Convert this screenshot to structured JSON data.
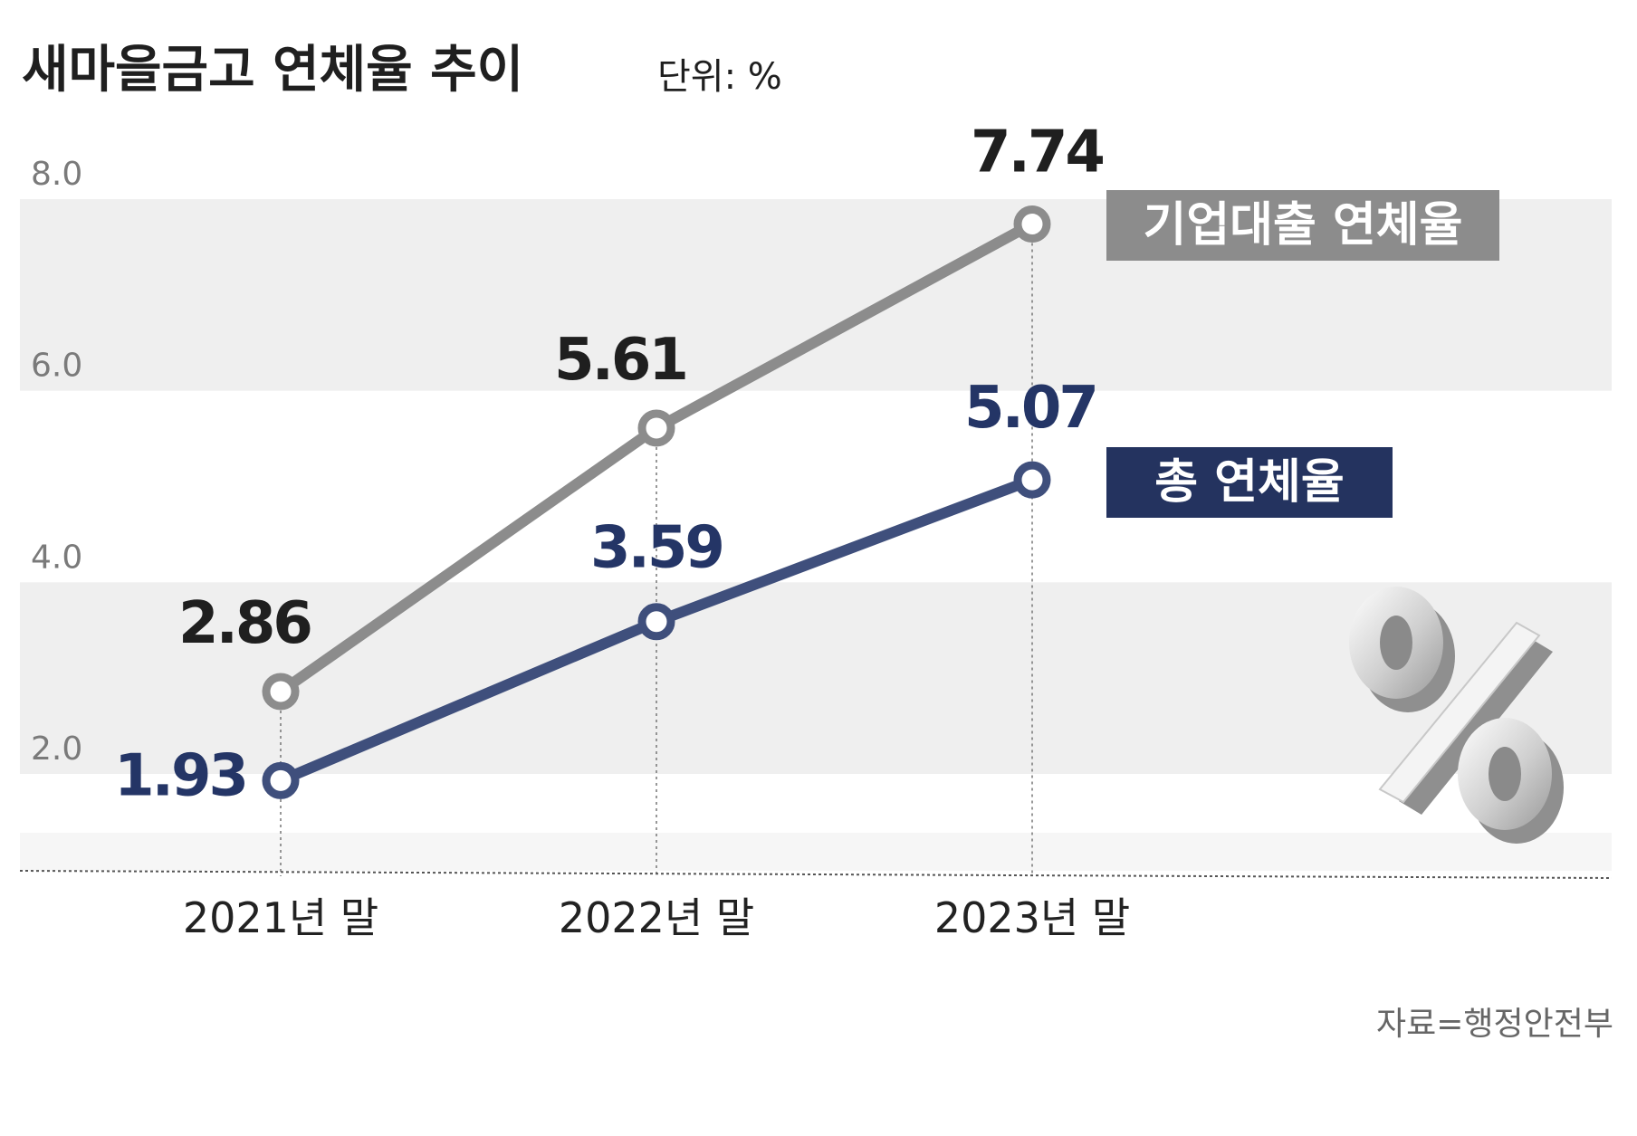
{
  "title": "새마을금고 연체율 추이",
  "unit": "단위: %",
  "source": "자료=행정안전부",
  "colors": {
    "background": "#ffffff",
    "band": "#efefef",
    "axis": "#555555",
    "tick": "#7a7a7a",
    "corporate": "#8c8c8c",
    "corporate_label": "#1f1f1f",
    "total": "#3f4f7c",
    "total_label": "#243566",
    "total_legend_bg": "#24335f",
    "legend_text": "#ffffff",
    "title": "#1f1f1f",
    "source": "#666666"
  },
  "chart_data": {
    "type": "line",
    "title": "새마을금고 연체율 추이",
    "categories": [
      "2021년 말",
      "2022년 말",
      "2023년 말"
    ],
    "ylim": [
      0.7,
      8.0
    ],
    "yticks": [
      2.0,
      4.0,
      6.0,
      8.0
    ],
    "ytick_labels": [
      "2.0",
      "4.0",
      "6.0",
      "8.0"
    ],
    "grid": "alternating bands",
    "legend": "right, next to line ends",
    "series": [
      {
        "name": "기업대출 연체율",
        "values": [
          2.86,
          5.61,
          7.74
        ],
        "value_labels": [
          "2.86",
          "5.61",
          "7.74"
        ]
      },
      {
        "name": "총 연체율",
        "values": [
          1.93,
          3.59,
          5.07
        ],
        "value_labels": [
          "1.93",
          "3.59",
          "5.07"
        ]
      }
    ]
  },
  "decoration": {
    "icon": "percent-icon",
    "glyph": "%"
  }
}
